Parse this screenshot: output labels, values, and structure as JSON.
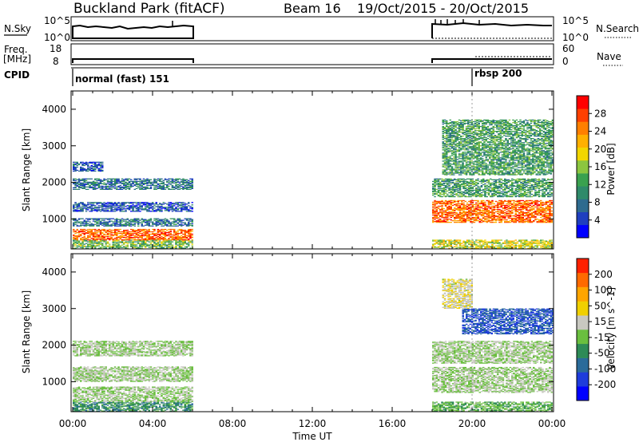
{
  "header": {
    "station": "Buckland Park (fitACF)",
    "beam": "Beam 16",
    "date_range": "19/Oct/2015 - 20/Oct/2015"
  },
  "left_labels": {
    "nsky": "N.Sky",
    "nsky_top": "10^5",
    "nsky_bottom": "10^0",
    "freq_line1": "Freq.",
    "freq_line2": "[MHz]",
    "freq_top": "18",
    "freq_bottom": "8",
    "cpid": "CPID"
  },
  "right_labels": {
    "nsearch": "N.Search",
    "nsearch_top": "10^5",
    "nsearch_bottom": "10^0",
    "nave": "Nave",
    "nave_top": "60",
    "nave_bottom": "0"
  },
  "cpid_events": [
    {
      "time_h": 0.0,
      "label": "normal (fast) 151"
    },
    {
      "time_h": 20.0,
      "label": "rbsp 200"
    }
  ],
  "colors": {
    "power_scale": [
      "#0000ff",
      "#1f3fbf",
      "#2e6b8f",
      "#2f8a6a",
      "#3aa14f",
      "#8cc63f",
      "#f2d600",
      "#ffb000",
      "#ff7f00",
      "#ff4000",
      "#ff0000"
    ],
    "velocity_scale": [
      "#0000ff",
      "#1e3cdc",
      "#2a6b9a",
      "#2e8b57",
      "#6abf3f",
      "#c8c8c0",
      "#f0d000",
      "#ffa500",
      "#ff6a00",
      "#ff2000"
    ]
  },
  "chart_data": [
    {
      "type": "heatmap",
      "title": "",
      "xlabel": "",
      "ylabel": "Slant Range [km]",
      "colorbar_label": "Power [dB]",
      "x_ticks": [
        "00:00",
        "04:00",
        "08:00",
        "12:00",
        "16:00",
        "20:00",
        "00:00"
      ],
      "y_ticks": [
        "1000",
        "2000",
        "3000",
        "4000"
      ],
      "x_range_h": [
        0,
        24
      ],
      "y_range_km": [
        180,
        4500
      ],
      "colorbar_ticks": [
        "4",
        "8",
        "12",
        "16",
        "20",
        "24",
        "28"
      ],
      "colorbar_range": [
        0,
        32
      ],
      "bands": [
        {
          "t0": 0.0,
          "t1": 6.0,
          "r0": 190,
          "r1": 420,
          "value": 14
        },
        {
          "t0": 0.0,
          "t1": 6.0,
          "r0": 420,
          "r1": 720,
          "value": 26
        },
        {
          "t0": 0.0,
          "t1": 6.0,
          "r0": 800,
          "r1": 1000,
          "value": 8
        },
        {
          "t0": 0.0,
          "t1": 6.0,
          "r0": 1200,
          "r1": 1450,
          "value": 6
        },
        {
          "t0": 0.0,
          "t1": 6.0,
          "r0": 1800,
          "r1": 2100,
          "value": 8
        },
        {
          "t0": 0.0,
          "t1": 1.5,
          "r0": 2300,
          "r1": 2550,
          "value": 6
        },
        {
          "t0": 18.0,
          "t1": 24.0,
          "r0": 190,
          "r1": 420,
          "value": 18
        },
        {
          "t0": 18.0,
          "t1": 24.0,
          "r0": 900,
          "r1": 1500,
          "value": 26
        },
        {
          "t0": 18.0,
          "t1": 24.0,
          "r0": 1600,
          "r1": 2100,
          "value": 12
        },
        {
          "t0": 18.5,
          "t1": 24.0,
          "r0": 2200,
          "r1": 3700,
          "value": 12
        }
      ]
    },
    {
      "type": "heatmap",
      "title": "",
      "xlabel": "Time UT",
      "ylabel": "Slant Range [km]",
      "colorbar_label": "Velocity [m s^-1]",
      "x_ticks": [
        "00:00",
        "04:00",
        "08:00",
        "12:00",
        "16:00",
        "20:00",
        "00:00"
      ],
      "y_ticks": [
        "1000",
        "2000",
        "3000",
        "4000"
      ],
      "x_range_h": [
        0,
        24
      ],
      "y_range_km": [
        180,
        4500
      ],
      "colorbar_ticks": [
        "-200",
        "-100",
        "-50",
        "-15",
        "15",
        "50",
        "100",
        "200"
      ],
      "colorbar_range": [
        -250,
        250
      ],
      "bands": [
        {
          "t0": 0.0,
          "t1": 6.0,
          "r0": 190,
          "r1": 450,
          "value": -80
        },
        {
          "t0": 0.0,
          "t1": 6.0,
          "r0": 450,
          "r1": 850,
          "value": 0
        },
        {
          "t0": 0.0,
          "t1": 6.0,
          "r0": 1000,
          "r1": 1400,
          "value": 0
        },
        {
          "t0": 0.0,
          "t1": 6.0,
          "r0": 1700,
          "r1": 2100,
          "value": 0
        },
        {
          "t0": 18.0,
          "t1": 24.0,
          "r0": 190,
          "r1": 450,
          "value": -40
        },
        {
          "t0": 18.0,
          "t1": 24.0,
          "r0": 700,
          "r1": 1400,
          "value": 0
        },
        {
          "t0": 18.0,
          "t1": 24.0,
          "r0": 1500,
          "r1": 2100,
          "value": 0
        },
        {
          "t0": 19.5,
          "t1": 24.0,
          "r0": 2300,
          "r1": 3000,
          "value": -150
        },
        {
          "t0": 18.5,
          "t1": 20.0,
          "r0": 3000,
          "r1": 3800,
          "value": 40
        }
      ]
    }
  ]
}
